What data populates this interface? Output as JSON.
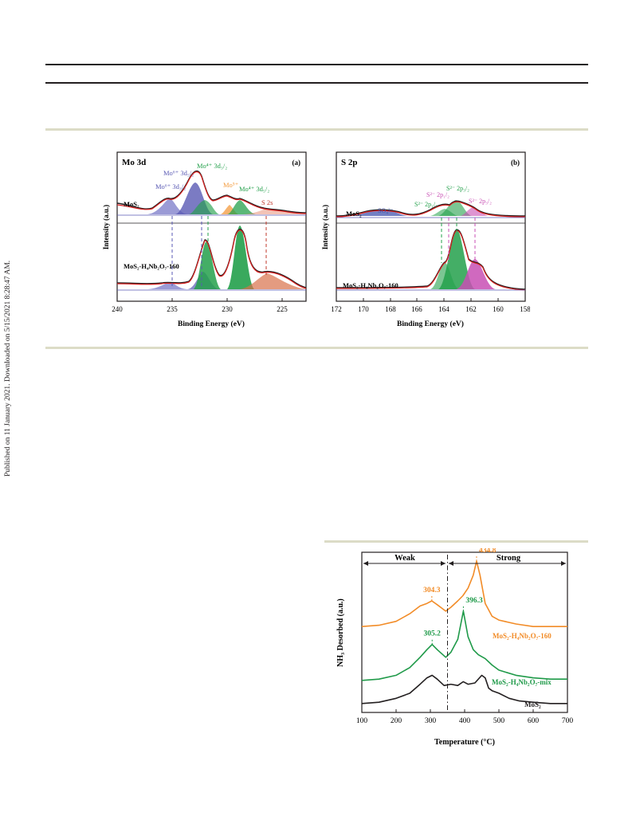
{
  "side_note": "Published on 11 January 2021. Downloaded on 5/15/2021 8:28:47 AM.",
  "colors": {
    "black": "#231f20",
    "red": "#d9201f",
    "blue": "#5a5ab4",
    "green": "#23a04b",
    "orange": "#f39a3c",
    "magenta": "#c84fb4",
    "brown": "#c0392b",
    "tpd_orange": "#f28c28",
    "tpd_green": "#1f9a49"
  },
  "panel_a": {
    "title": "Mo 3d",
    "tag": "(a)",
    "ylabel": "Intensity (a.u.)",
    "xlabel": "Binding Energy (eV)",
    "ticks": [
      "240",
      "235",
      "230",
      "225"
    ],
    "sample_top": "MoS₂",
    "sample_bottom": "MoS₂-H₄Nb₂O₇-160",
    "peaks": {
      "mo6_52": "Mo⁶⁺ 3d₅/₂",
      "mo6_32": "Mo⁶⁺ 3d₃/₂",
      "mo4_32": "Mo⁴⁺ 3d₃/₂",
      "mo5": "Mo⁵⁺",
      "mo4_52": "Mo⁴⁺ 3d₅/₂",
      "s2s": "S 2s"
    }
  },
  "panel_b": {
    "title": "S 2p",
    "tag": "(b)",
    "ylabel": "Intensity (a.u.)",
    "xlabel": "Binding Energy (eV)",
    "ticks": [
      "172",
      "170",
      "168",
      "166",
      "164",
      "162",
      "160",
      "158"
    ],
    "sample_top": "MoS₂",
    "sample_bottom": "MoS₂-H₄Nb₂O₇-160",
    "peaks": {
      "so4": "SO₄²⁻",
      "s2p12_a": "S²⁻ 2p₁/₂",
      "s2p32": "S²⁻ 2p₃/₂",
      "s2p12_b": "S²⁻ 2p₁/₂",
      "s2p32_b": "S²⁻ 2p₃/₂"
    }
  },
  "chart_data": {
    "type": "line",
    "xlabel": "Temperature (°C)",
    "ylabel": "NH₃ Desorbed (a.u.)",
    "xlim": [
      100,
      700
    ],
    "x_ticks": [
      100,
      200,
      300,
      400,
      500,
      600,
      700
    ],
    "regions": [
      {
        "label": "Weak",
        "from": 100,
        "to": 350
      },
      {
        "label": "Strong",
        "from": 350,
        "to": 700
      }
    ],
    "series": [
      {
        "name": "MoS₂-H₄Nb₂O₇-160",
        "color": "#f28c28",
        "x": [
          100,
          150,
          200,
          240,
          270,
          290,
          304.3,
          320,
          345,
          360,
          380,
          395,
          410,
          425,
          434.8,
          445,
          460,
          480,
          500,
          550,
          600,
          650,
          700
        ],
        "y": [
          0.62,
          0.63,
          0.66,
          0.72,
          0.78,
          0.8,
          0.82,
          0.79,
          0.74,
          0.77,
          0.82,
          0.86,
          0.92,
          1.02,
          1.13,
          1.02,
          0.8,
          0.7,
          0.67,
          0.64,
          0.62,
          0.62,
          0.62
        ]
      },
      {
        "name": "MoS₂-H₄Nb₂O₇-mix",
        "color": "#1f9a49",
        "x": [
          100,
          150,
          200,
          240,
          270,
          290,
          305.2,
          320,
          345,
          360,
          380,
          396.3,
          410,
          425,
          440,
          460,
          480,
          500,
          550,
          600,
          650,
          700
        ],
        "y": [
          0.2,
          0.21,
          0.24,
          0.3,
          0.38,
          0.44,
          0.48,
          0.44,
          0.38,
          0.42,
          0.52,
          0.74,
          0.54,
          0.44,
          0.4,
          0.37,
          0.32,
          0.28,
          0.24,
          0.22,
          0.21,
          0.21
        ]
      },
      {
        "name": "MoS₂",
        "color": "#231f20",
        "x": [
          100,
          150,
          200,
          240,
          270,
          290,
          305,
          320,
          340,
          360,
          380,
          396,
          410,
          430,
          450,
          460,
          470,
          480,
          500,
          530,
          560,
          600,
          650,
          700
        ],
        "y": [
          0.02,
          0.03,
          0.06,
          0.1,
          0.17,
          0.22,
          0.24,
          0.21,
          0.16,
          0.17,
          0.16,
          0.19,
          0.17,
          0.18,
          0.24,
          0.22,
          0.14,
          0.12,
          0.1,
          0.06,
          0.04,
          0.03,
          0.02,
          0.02
        ]
      }
    ],
    "annotations": [
      {
        "text": "434.8",
        "x": 434.8,
        "series": "MoS₂-H₄Nb₂O₇-160"
      },
      {
        "text": "304.3",
        "x": 304.3,
        "series": "MoS₂-H₄Nb₂O₇-160"
      },
      {
        "text": "396.3",
        "x": 396.3,
        "series": "MoS₂-H₄Nb₂O₇-mix"
      },
      {
        "text": "305.2",
        "x": 305.2,
        "series": "MoS₂-H₄Nb₂O₇-mix"
      }
    ],
    "divider_x": 350,
    "labels": {
      "weak": "Weak",
      "strong": "Strong",
      "legend_160": "MoS₂-H₄Nb₂O₇-160",
      "legend_mix": "MoS₂-H₄Nb₂O₇-mix",
      "legend_mos2": "MoS₂"
    }
  }
}
